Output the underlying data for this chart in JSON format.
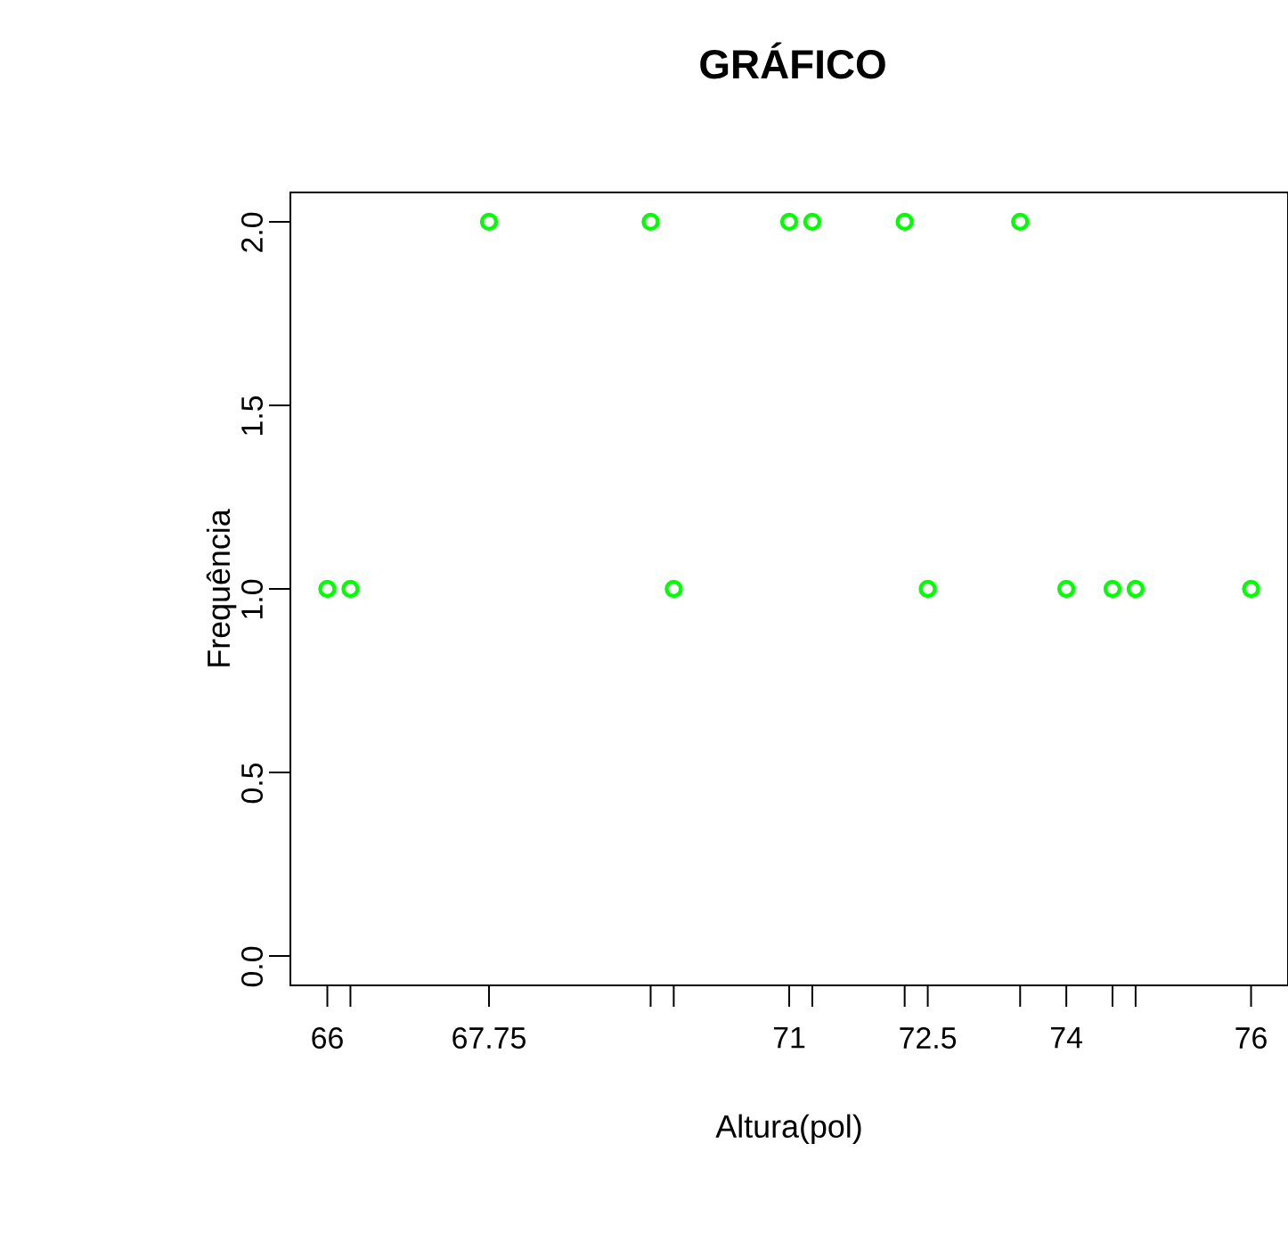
{
  "chart_data": {
    "type": "scatter",
    "title": "GRÁFICO",
    "xlabel": "Altura(pol)",
    "ylabel": "Frequência",
    "x": [
      66,
      66.25,
      67.75,
      69.5,
      69.75,
      71,
      71.25,
      72.25,
      72.5,
      73.5,
      74,
      74.5,
      74.75,
      76
    ],
    "series": [
      {
        "color": "#00ff00",
        "values": [
          1,
          1,
          2,
          2,
          1,
          2,
          2,
          2,
          1,
          2,
          1,
          1,
          1,
          1
        ]
      }
    ],
    "marker": "circle",
    "xlim": [
      65.6,
      76.4
    ],
    "ylim": [
      -0.08,
      2.08
    ],
    "xticks": [
      66,
      {
        "value": 66.25,
        "label": null
      },
      67.75,
      {
        "value": 69.5,
        "label": null
      },
      {
        "value": 69.75,
        "label": null
      },
      71,
      {
        "value": 71.25,
        "label": null
      },
      {
        "value": 72.25,
        "label": null
      },
      72.5,
      {
        "value": 73.5,
        "label": null
      },
      74,
      {
        "value": 74.5,
        "label": null
      },
      {
        "value": 74.75,
        "label": null
      },
      76
    ],
    "yticks": [
      {
        "value": 0,
        "label": "0.0"
      },
      {
        "value": 0.5,
        "label": "0.5"
      },
      {
        "value": 1,
        "label": "1.0"
      },
      {
        "value": 1.5,
        "label": "1.5"
      },
      {
        "value": 2,
        "label": "2.0"
      }
    ]
  }
}
